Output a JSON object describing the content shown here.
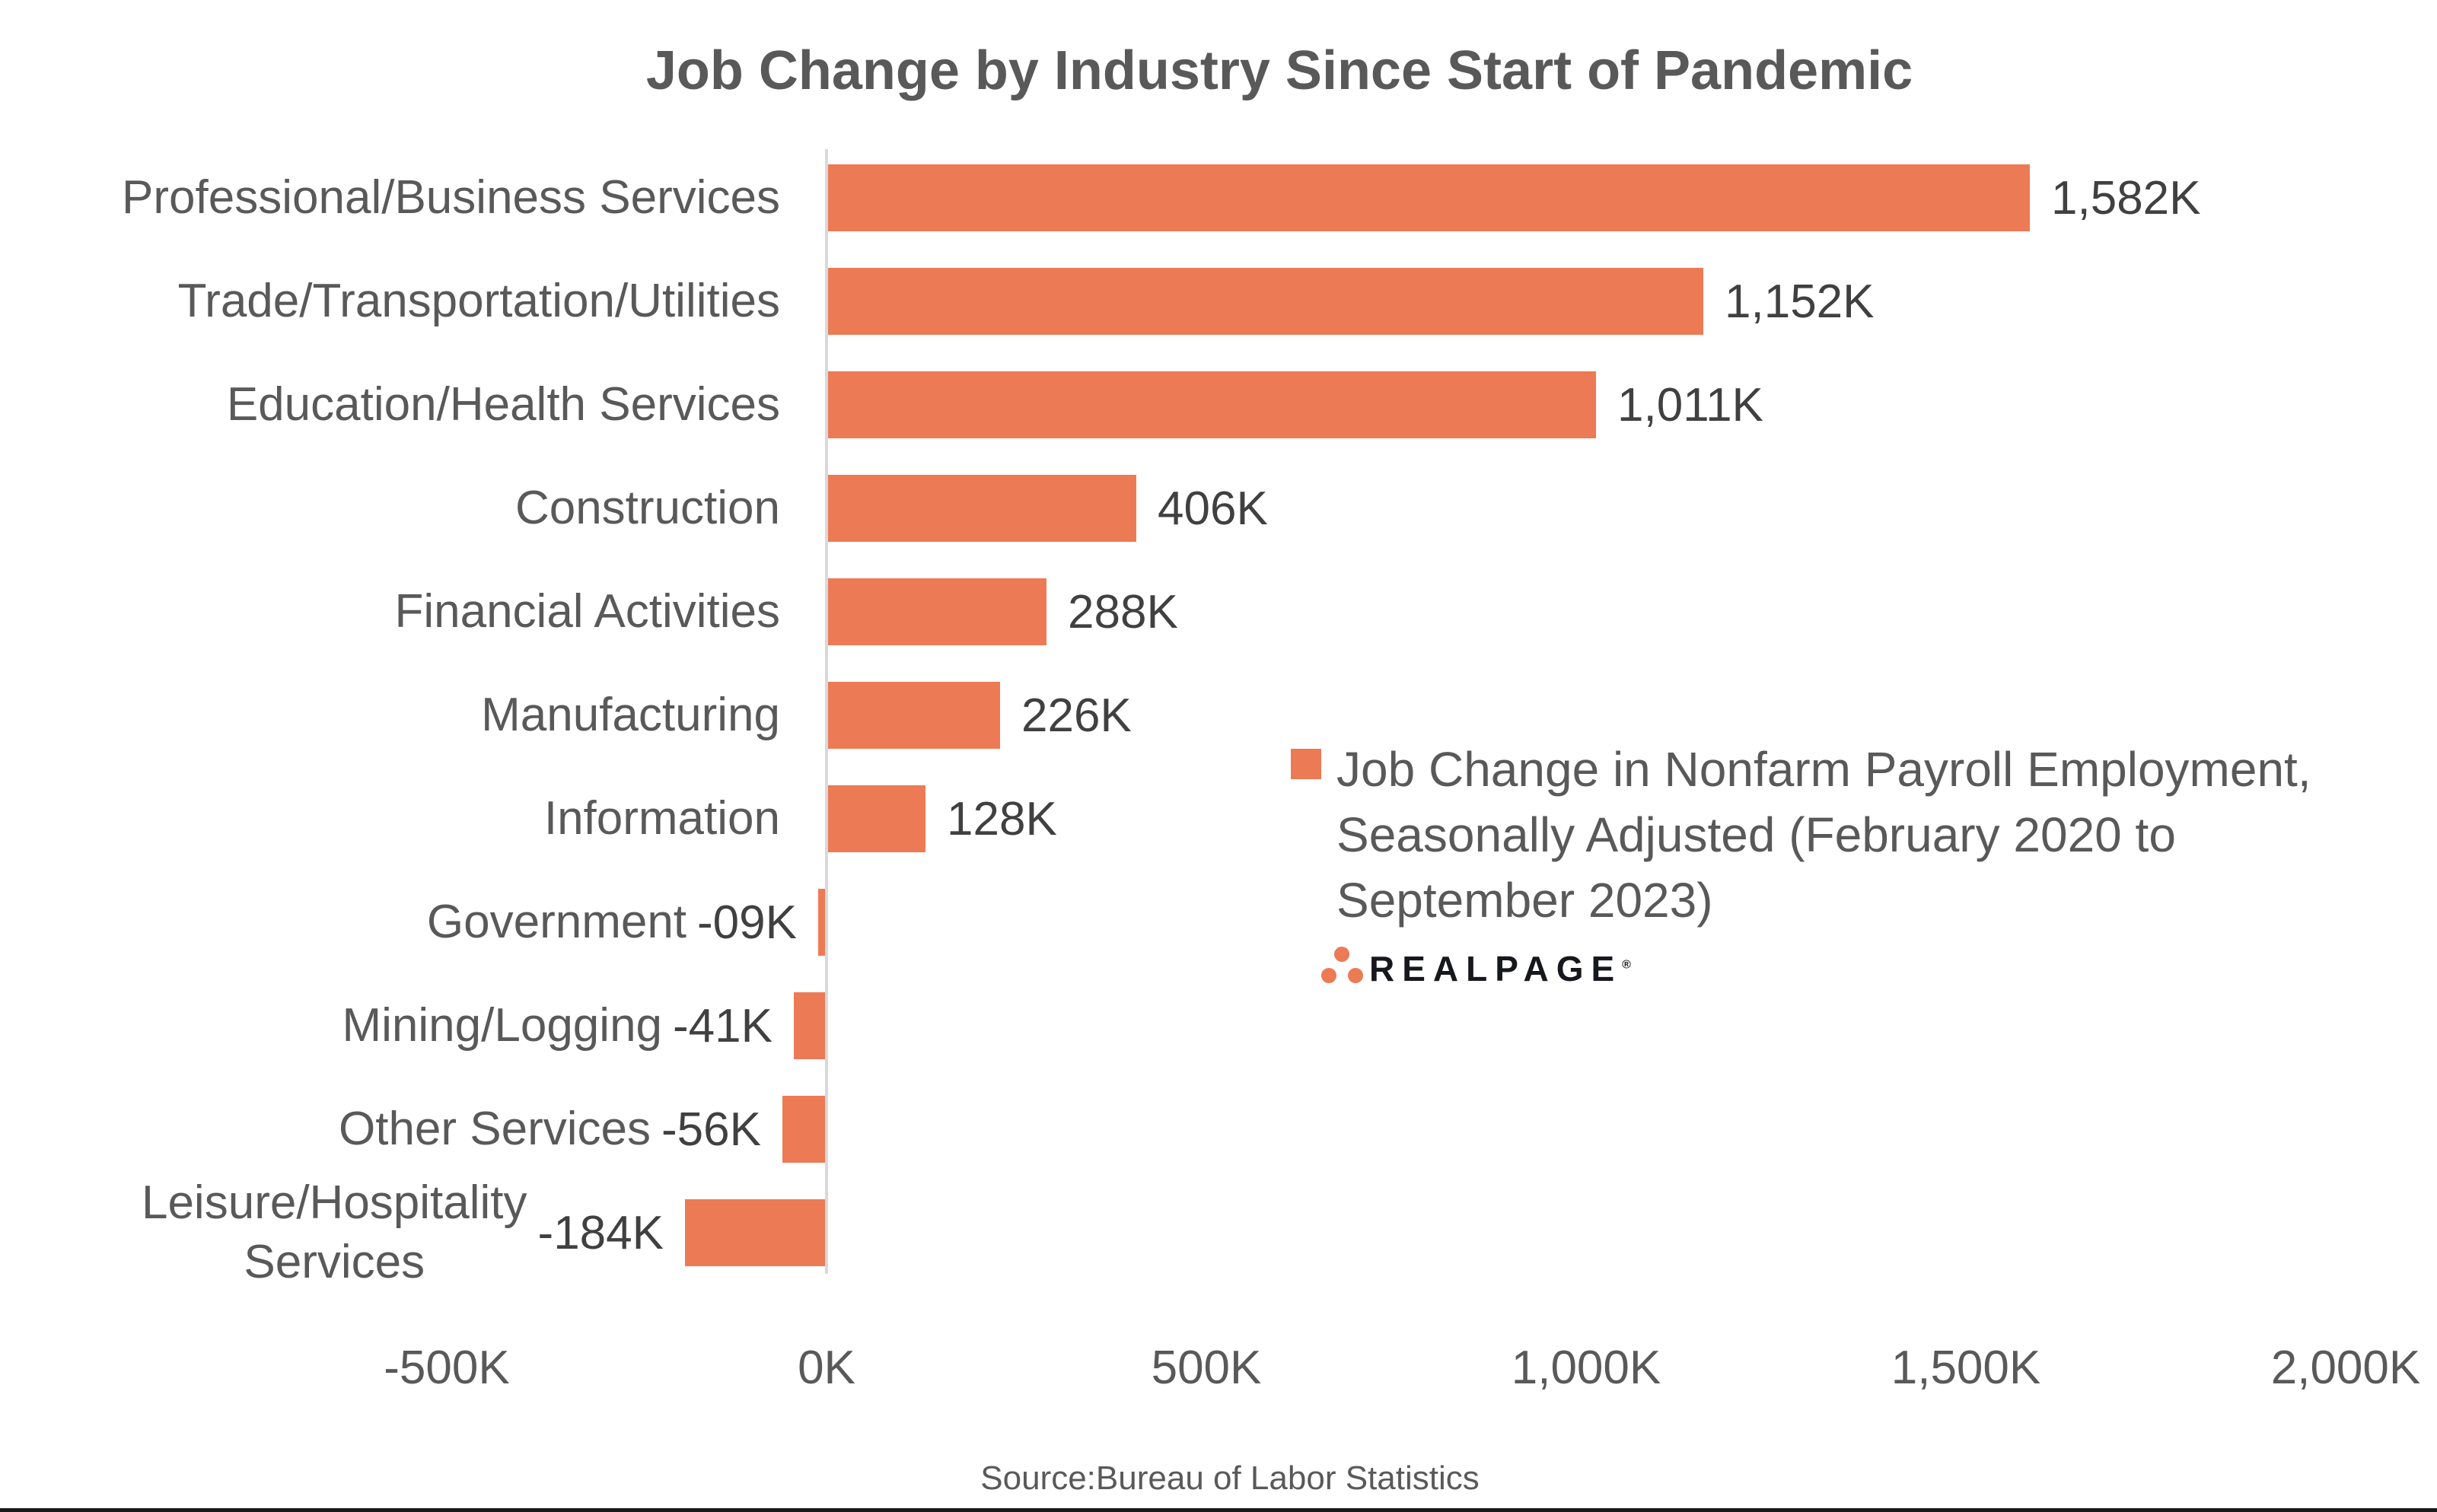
{
  "title": "Job Change by Industry Since Start of Pandemic",
  "source": "Source:Bureau of Labor Statistics",
  "logo": {
    "brand": "REALPAGE",
    "registered_mark": "®",
    "dot_color": "#ec7a55",
    "text_color": "#16181d"
  },
  "colors": {
    "bar": "#ec7a55",
    "label_gray": "#595959",
    "value_dark": "#404040",
    "axis_line": "#d9d9d9"
  },
  "chart_data": {
    "type": "bar",
    "orientation": "horizontal",
    "title": "Job Change by Industry Since Start of Pandemic",
    "xlabel": "",
    "ylabel": "",
    "xlim_k": [
      -500,
      2000
    ],
    "grid": "off",
    "x_ticks": [
      {
        "value": -500,
        "label": "-500K"
      },
      {
        "value": 0,
        "label": "0K"
      },
      {
        "value": 500,
        "label": "500K"
      },
      {
        "value": 1000,
        "label": "1,000K"
      },
      {
        "value": 1500,
        "label": "1,500K"
      },
      {
        "value": 2000,
        "label": "2,000K"
      }
    ],
    "series_name": "Job Change in Nonfarm Payroll Employment, Seasonally Adjusted (February 2020 to September 2023)",
    "rows": [
      {
        "category": "Professional/Business Services",
        "category_lines": [
          "Professional/Business Services"
        ],
        "value_k": 1582,
        "label": "1,582K"
      },
      {
        "category": "Trade/Transportation/Utilities",
        "category_lines": [
          "Trade/Transportation/Utilities"
        ],
        "value_k": 1152,
        "label": "1,152K"
      },
      {
        "category": "Education/Health Services",
        "category_lines": [
          "Education/Health Services"
        ],
        "value_k": 1011,
        "label": "1,011K"
      },
      {
        "category": "Construction",
        "category_lines": [
          "Construction"
        ],
        "value_k": 406,
        "label": "406K"
      },
      {
        "category": "Financial Activities",
        "category_lines": [
          "Financial Activities"
        ],
        "value_k": 288,
        "label": "288K"
      },
      {
        "category": "Manufacturing",
        "category_lines": [
          "Manufacturing"
        ],
        "value_k": 226,
        "label": "226K"
      },
      {
        "category": "Information",
        "category_lines": [
          "Information"
        ],
        "value_k": 128,
        "label": "128K"
      },
      {
        "category": "Government",
        "category_lines": [
          "Government"
        ],
        "value_k": -9,
        "label": "-09K"
      },
      {
        "category": "Mining/Logging",
        "category_lines": [
          "Mining/Logging"
        ],
        "value_k": -41,
        "label": "-41K"
      },
      {
        "category": "Other Services",
        "category_lines": [
          "Other Services"
        ],
        "value_k": -56,
        "label": "-56K"
      },
      {
        "category": "Leisure/Hospitality Services",
        "category_lines": [
          "Leisure/Hospitality",
          "Services"
        ],
        "value_k": -184,
        "label": "-184K"
      }
    ],
    "legend": {
      "position": "right-middle",
      "marker_color": "#ec7a55",
      "label_lines": [
        "Job Change in Nonfarm Payroll Employment,",
        "Seasonally Adjusted (February 2020 to",
        "September 2023)"
      ]
    }
  }
}
